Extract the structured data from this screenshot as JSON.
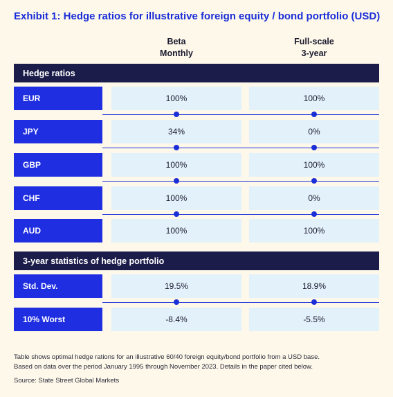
{
  "title": "Exhibit 1: Hedge ratios for illustrative foreign equity / bond portfolio (USD)",
  "columns": [
    {
      "line1": "Beta",
      "line2": "Monthly"
    },
    {
      "line1": "Full-scale",
      "line2": "3-year"
    }
  ],
  "sections": [
    {
      "title": "Hedge ratios",
      "rows": [
        {
          "label": "EUR",
          "values": [
            "100%",
            "100%"
          ]
        },
        {
          "label": "JPY",
          "values": [
            "34%",
            "0%"
          ]
        },
        {
          "label": "GBP",
          "values": [
            "100%",
            "100%"
          ]
        },
        {
          "label": "CHF",
          "values": [
            "100%",
            "0%"
          ]
        },
        {
          "label": "AUD",
          "values": [
            "100%",
            "100%"
          ]
        }
      ]
    },
    {
      "title": "3-year statistics of hedge portfolio",
      "rows": [
        {
          "label": "Std. Dev.",
          "values": [
            "19.5%",
            "18.9%"
          ]
        },
        {
          "label": "10% Worst",
          "values": [
            "-8.4%",
            "-5.5%"
          ]
        }
      ]
    }
  ],
  "notes": {
    "line1": "Table shows optimal hedge rations for an illustrative 60/40 foreign equity/bond portfolio from a USD base.",
    "line2": "Based on data over the period January 1995 through November 2023. Details in the paper cited below.",
    "source": "Source: State Street Global Markets"
  },
  "colors": {
    "background": "#fdf8ea",
    "accent_blue": "#1b2fd8",
    "section_navy": "#1c1c4b",
    "cell_light_blue": "#e3f1fb"
  }
}
